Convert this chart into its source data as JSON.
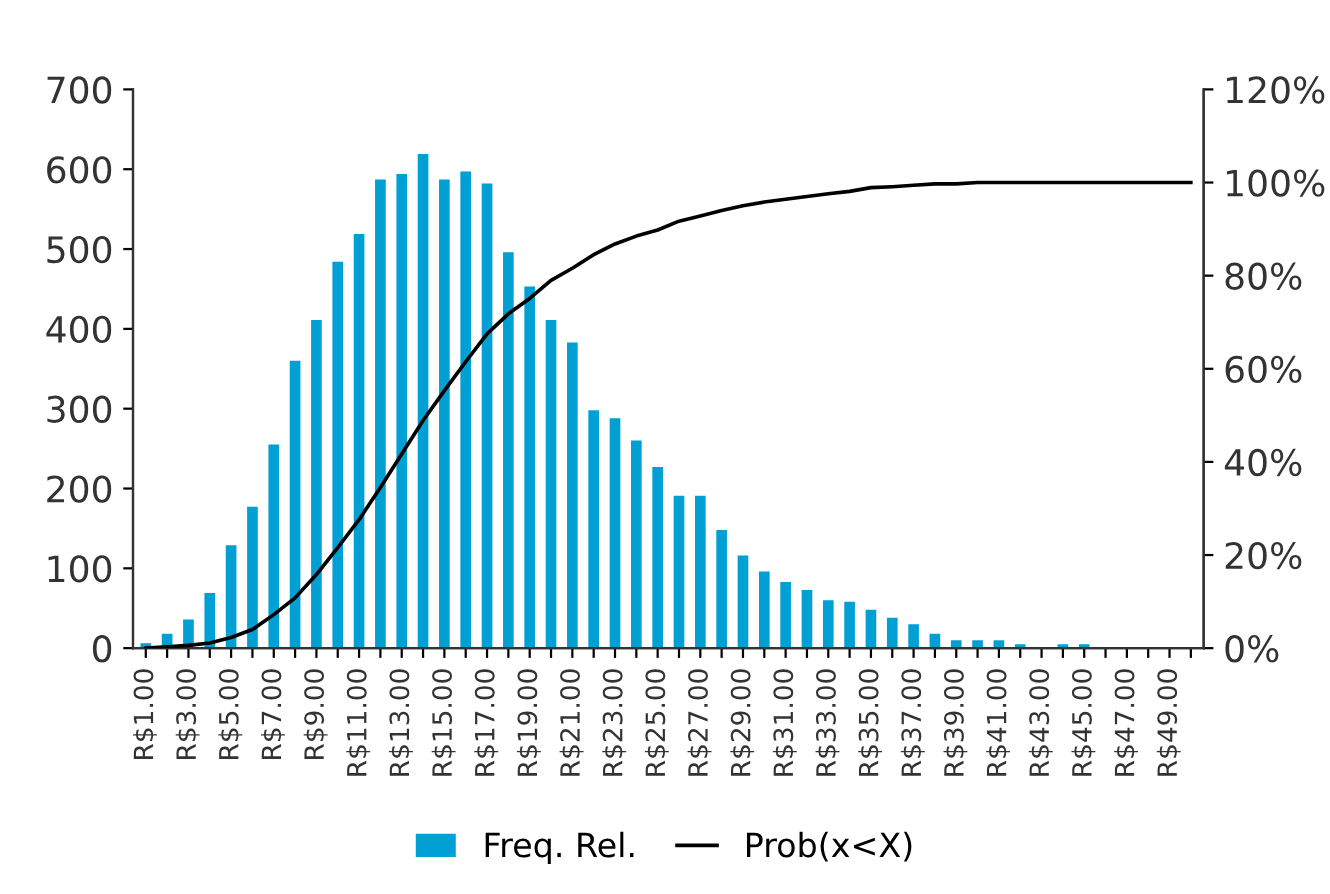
{
  "chart_data": {
    "type": "bar",
    "categories": [
      "R$1.00",
      null,
      "R$3.00",
      null,
      "R$5.00",
      null,
      "R$7.00",
      null,
      "R$9.00",
      null,
      "R$11.00",
      null,
      "R$13.00",
      null,
      "R$15.00",
      null,
      "R$17.00",
      null,
      "R$19.00",
      null,
      "R$21.00",
      null,
      "R$23.00",
      null,
      "R$25.00",
      null,
      "R$27.00",
      null,
      "R$29.00",
      null,
      "R$31.00",
      null,
      "R$33.00",
      null,
      "R$35.00",
      null,
      "R$37.00",
      null,
      "R$39.00",
      null,
      "R$41.00",
      null,
      "R$43.00",
      null,
      "R$45.00",
      null,
      "R$47.00",
      null,
      "R$49.00",
      null
    ],
    "series": [
      {
        "name": "Freq. Rel.",
        "color": "#009fd4",
        "values": [
          6,
          18,
          36,
          69,
          129,
          177,
          255,
          360,
          411,
          484,
          519,
          587,
          594,
          619,
          587,
          597,
          582,
          496,
          453,
          411,
          383,
          298,
          288,
          260,
          227,
          191,
          191,
          148,
          116,
          96,
          83,
          73,
          60,
          58,
          48,
          38,
          30,
          18,
          10,
          10,
          10,
          5,
          0,
          5,
          5,
          0,
          0,
          0,
          0,
          0
        ]
      },
      {
        "name": "Prob(x<X)",
        "type": "line",
        "axis": "y2",
        "color": "#000000",
        "values": [
          0,
          0.3,
          0.6,
          1.1,
          2.3,
          4,
          7.2,
          10.8,
          15.8,
          21.6,
          27.6,
          34.5,
          41.7,
          48.9,
          55.3,
          61.5,
          67.5,
          71.8,
          75.1,
          79,
          81.6,
          84.5,
          86.8,
          88.5,
          89.8,
          91.7,
          92.8,
          94,
          95,
          95.8,
          96.4,
          97,
          97.6,
          98.1,
          98.9,
          99.1,
          99.4,
          99.7,
          99.7,
          100,
          100,
          100,
          100,
          100,
          100,
          100,
          100,
          100,
          100,
          100
        ]
      }
    ],
    "ylim": [
      0,
      700
    ],
    "yticks": [
      0,
      100,
      200,
      300,
      400,
      500,
      600,
      700
    ],
    "y2lim": [
      0,
      120
    ],
    "y2ticks": [
      {
        "value": 0,
        "label": "0%"
      },
      {
        "value": 20,
        "label": "20%"
      },
      {
        "value": 40,
        "label": "40%"
      },
      {
        "value": 60,
        "label": "60%"
      },
      {
        "value": 80,
        "label": "80%"
      },
      {
        "value": 100,
        "label": "100%"
      },
      {
        "value": 120,
        "label": "120%"
      }
    ],
    "legend": "bottom",
    "grid": false,
    "marker": "none",
    "line_style": "solid"
  }
}
